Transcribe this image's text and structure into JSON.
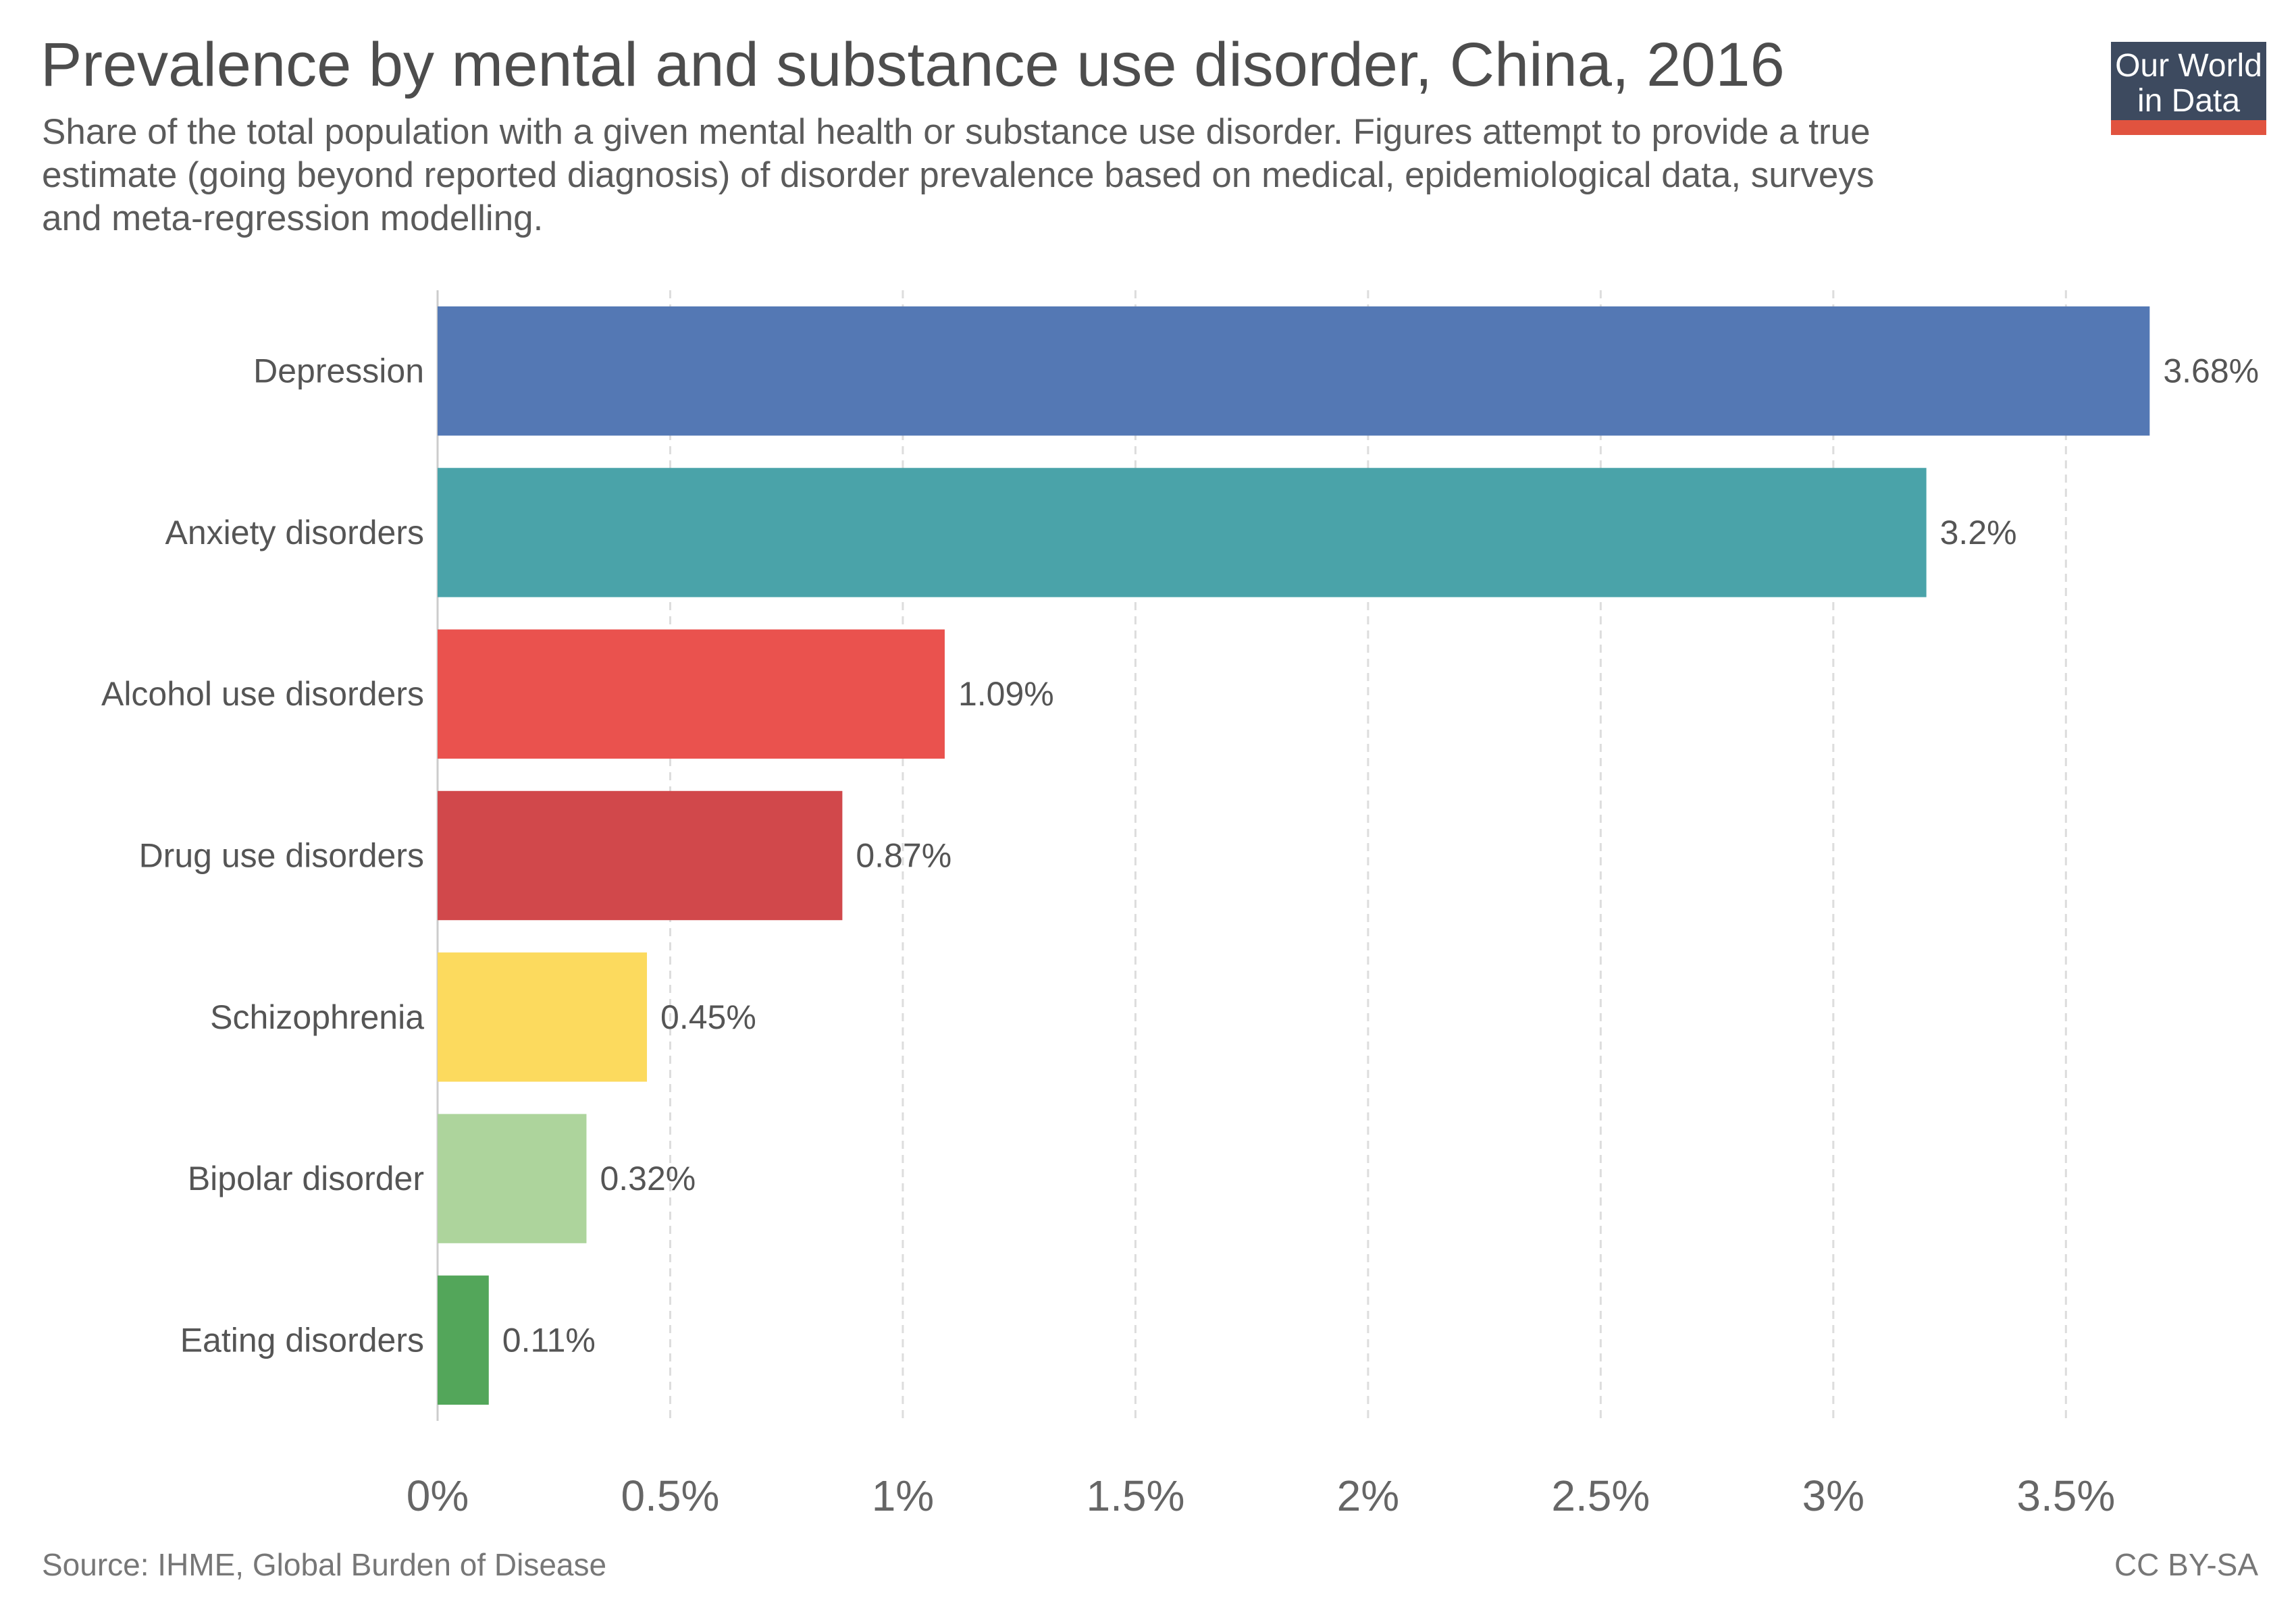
{
  "header": {
    "title": "Prevalence by mental and substance use disorder, China, 2016",
    "subtitle_lines": [
      "Share of the total population with a given mental health or substance use disorder. Figures attempt to provide a true",
      "estimate (going beyond reported diagnosis) of disorder prevalence based on medical, epidemiological data, surveys",
      "and meta-regression modelling."
    ]
  },
  "logo": {
    "line1": "Our World",
    "line2": "in Data",
    "background": "#3d4a5f",
    "accent": "#e1533f"
  },
  "footer": {
    "source": "Source: IHME, Global Burden of Disease",
    "license": "CC BY-SA"
  },
  "chart_data": {
    "type": "bar",
    "orientation": "horizontal",
    "categories": [
      "Depression",
      "Anxiety disorders",
      "Alcohol use disorders",
      "Drug use disorders",
      "Schizophrenia",
      "Bipolar disorder",
      "Eating disorders"
    ],
    "values": [
      3.68,
      3.2,
      1.09,
      0.87,
      0.45,
      0.32,
      0.11
    ],
    "value_labels": [
      "3.68%",
      "3.2%",
      "1.09%",
      "0.87%",
      "0.45%",
      "0.32%",
      "0.11%"
    ],
    "colors": [
      "#5478b4",
      "#4aa3a9",
      "#ea524e",
      "#d1484b",
      "#fcda5e",
      "#add49c",
      "#53a65a"
    ],
    "xlim": [
      0,
      3.8
    ],
    "x_ticks": [
      0,
      0.5,
      1,
      1.5,
      2,
      2.5,
      3,
      3.5
    ],
    "x_tick_labels": [
      "0%",
      "0.5%",
      "1%",
      "1.5%",
      "2%",
      "2.5%",
      "3%",
      "3.5%"
    ],
    "grid": "vertical dashed",
    "xlabel": "",
    "ylabel": ""
  }
}
